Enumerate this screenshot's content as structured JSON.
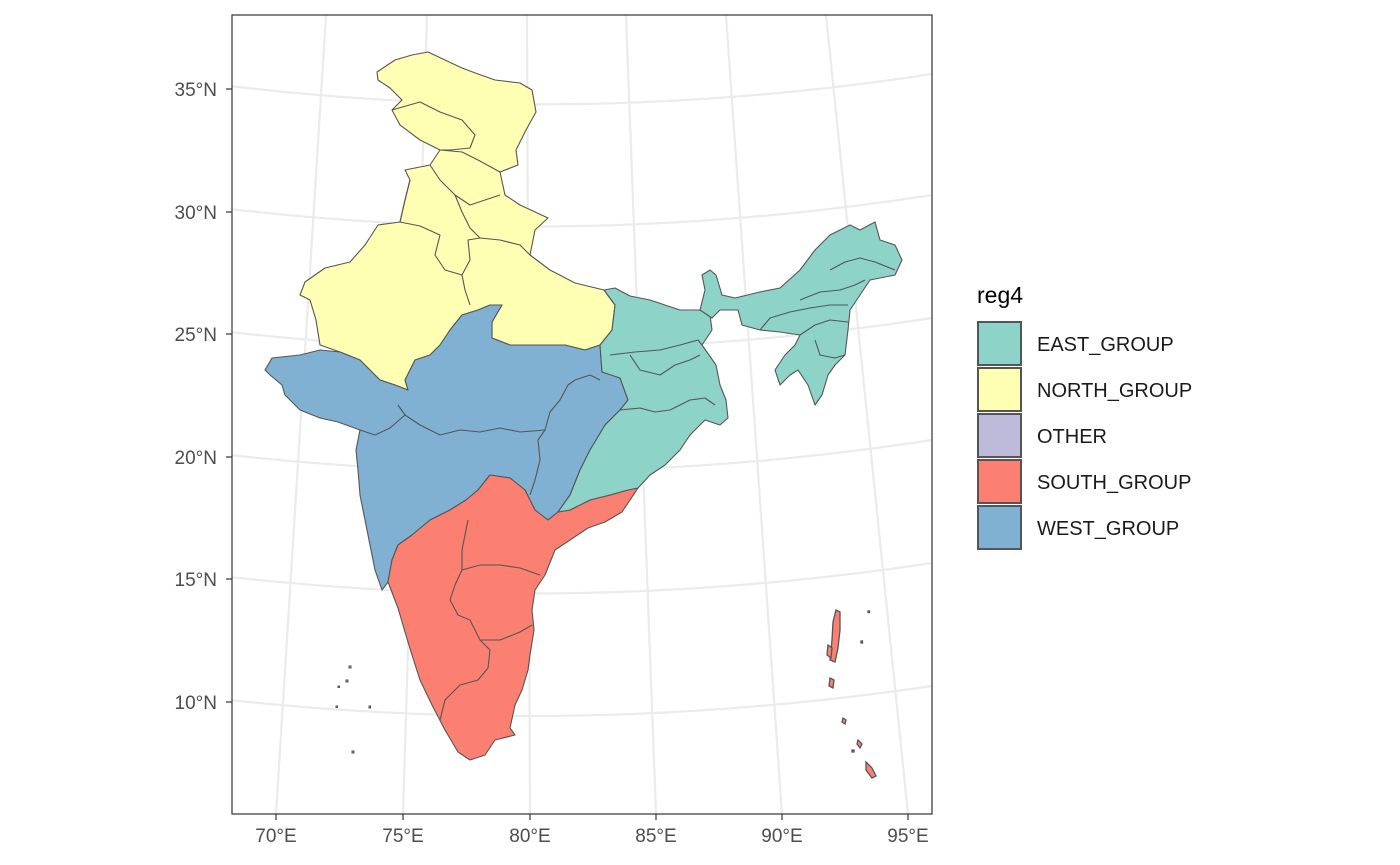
{
  "map": {
    "legend": {
      "title": "reg4",
      "items": [
        {
          "label": "EAST_GROUP",
          "color": "#8DD3C7"
        },
        {
          "label": "NORTH_GROUP",
          "color": "#FFFFB3"
        },
        {
          "label": "OTHER",
          "color": "#BEBADA"
        },
        {
          "label": "SOUTH_GROUP",
          "color": "#FB8072"
        },
        {
          "label": "WEST_GROUP",
          "color": "#80B1D3"
        }
      ]
    },
    "x_ticks": [
      "70°E",
      "75°E",
      "80°E",
      "85°E",
      "90°E",
      "95°E"
    ],
    "y_ticks": [
      "35°N",
      "30°N",
      "25°N",
      "20°N",
      "15°N",
      "10°N"
    ]
  }
}
